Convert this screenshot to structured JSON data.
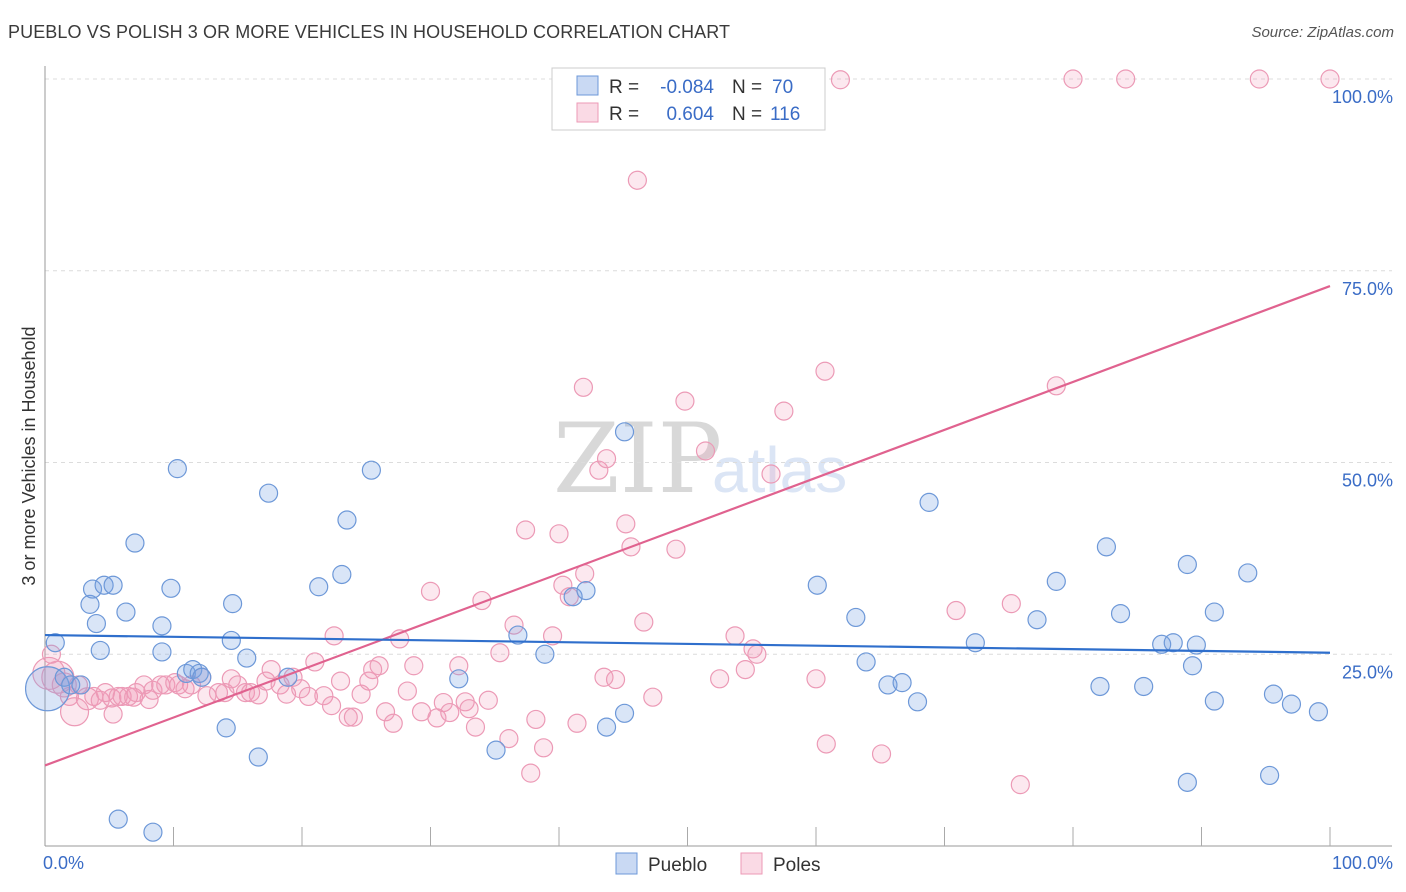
{
  "title": "PUEBLO VS POLISH 3 OR MORE VEHICLES IN HOUSEHOLD CORRELATION CHART",
  "source": "Source: ZipAtlas.com",
  "watermark": {
    "zip": "ZIP",
    "atlas": "atlas"
  },
  "chart_data": {
    "type": "scatter",
    "title": "PUEBLO VS POLISH 3 OR MORE VEHICLES IN HOUSEHOLD CORRELATION CHART",
    "xlabel": "",
    "ylabel": "3 or more Vehicles in Household",
    "xlim": [
      0,
      100
    ],
    "ylim": [
      0,
      100
    ],
    "x_tick_labels": [
      "0.0%",
      "100.0%"
    ],
    "y_tick_labels": [
      "25.0%",
      "50.0%",
      "75.0%",
      "100.0%"
    ],
    "y_ticks": [
      25,
      50,
      75,
      100
    ],
    "colors": {
      "pueblo": "#6d98d8",
      "poles": "#ec9ab6",
      "pueblo_line": "#2f6fcc",
      "poles_line": "#e0628f"
    },
    "legend": [
      {
        "name": "Pueblo",
        "r_label": "R =",
        "r": "-0.084",
        "n_label": "N =",
        "n": "70"
      },
      {
        "name": "Poles",
        "r_label": "R =",
        "r": "0.604",
        "n_label": "N =",
        "n": "116"
      }
    ],
    "series": [
      {
        "name": "Pueblo",
        "trend": {
          "x": [
            0,
            100
          ],
          "y": [
            27.5,
            25.2
          ]
        },
        "points": [
          [
            0.2,
            20.5,
            22
          ],
          [
            0.8,
            26.5,
            9
          ],
          [
            1.5,
            22,
            9
          ],
          [
            2,
            21,
            9
          ],
          [
            2.8,
            21,
            9
          ],
          [
            3.5,
            31.5,
            9
          ],
          [
            3.7,
            33.5,
            9
          ],
          [
            4,
            29,
            9
          ],
          [
            4.3,
            25.5,
            9
          ],
          [
            4.6,
            34,
            9
          ],
          [
            5.3,
            34,
            9
          ],
          [
            5.7,
            3.5,
            9
          ],
          [
            6.3,
            30.5,
            9
          ],
          [
            7,
            39.5,
            9
          ],
          [
            8.4,
            1.8,
            9
          ],
          [
            9.1,
            25.3,
            9
          ],
          [
            9.1,
            28.7,
            9
          ],
          [
            9.8,
            33.6,
            9
          ],
          [
            10.3,
            49.2,
            9
          ],
          [
            11,
            22.5,
            9
          ],
          [
            11.5,
            23,
            9
          ],
          [
            12,
            22.5,
            9
          ],
          [
            12.2,
            22,
            9
          ],
          [
            14.1,
            15.4,
            9
          ],
          [
            14.5,
            26.8,
            9
          ],
          [
            14.6,
            31.6,
            9
          ],
          [
            15.7,
            24.5,
            9
          ],
          [
            16.6,
            11.6,
            9
          ],
          [
            17.4,
            46,
            9
          ],
          [
            18.9,
            22,
            9
          ],
          [
            21.3,
            33.8,
            9
          ],
          [
            23.1,
            35.4,
            9
          ],
          [
            23.5,
            42.5,
            9
          ],
          [
            25.4,
            49,
            9
          ],
          [
            32.2,
            21.8,
            9
          ],
          [
            35.1,
            12.5,
            9
          ],
          [
            36.8,
            27.5,
            9
          ],
          [
            38.9,
            25,
            9
          ],
          [
            41.1,
            32.5,
            9
          ],
          [
            42.1,
            33.3,
            9
          ],
          [
            43.7,
            15.5,
            9
          ],
          [
            45.1,
            54,
            9
          ],
          [
            45.1,
            17.3,
            9
          ],
          [
            60.1,
            34,
            9
          ],
          [
            63.1,
            29.8,
            9
          ],
          [
            63.9,
            24,
            9
          ],
          [
            65.6,
            21,
            9
          ],
          [
            66.7,
            21.3,
            9
          ],
          [
            67.9,
            18.8,
            9
          ],
          [
            68.8,
            44.8,
            9
          ],
          [
            72.4,
            26.5,
            9
          ],
          [
            77.2,
            29.5,
            9
          ],
          [
            78.7,
            34.5,
            9
          ],
          [
            82.1,
            20.8,
            9
          ],
          [
            82.6,
            39,
            9
          ],
          [
            83.7,
            30.3,
            9
          ],
          [
            85.5,
            20.8,
            9
          ],
          [
            86.9,
            26.3,
            9
          ],
          [
            87.8,
            26.5,
            9
          ],
          [
            88.9,
            8.3,
            9
          ],
          [
            88.9,
            36.7,
            9
          ],
          [
            89.3,
            23.5,
            9
          ],
          [
            89.6,
            26.2,
            9
          ],
          [
            91,
            30.5,
            9
          ],
          [
            91,
            18.9,
            9
          ],
          [
            93.6,
            35.6,
            9
          ],
          [
            95.3,
            9.2,
            9
          ],
          [
            95.6,
            19.8,
            9
          ],
          [
            97,
            18.5,
            9
          ],
          [
            99.1,
            17.5,
            9
          ]
        ]
      },
      {
        "name": "Poles",
        "trend": {
          "x": [
            0,
            100
          ],
          "y": [
            10.5,
            73
          ]
        },
        "points": [
          [
            0.3,
            22.5,
            16
          ],
          [
            0.5,
            25,
            9
          ],
          [
            1,
            22,
            16
          ],
          [
            1.5,
            21,
            12
          ],
          [
            1.9,
            19.5,
            9
          ],
          [
            2.3,
            17.5,
            14
          ],
          [
            2.6,
            21,
            9
          ],
          [
            3.3,
            19.2,
            11
          ],
          [
            3.8,
            19.5,
            9
          ],
          [
            4.3,
            19,
            9
          ],
          [
            4.7,
            20,
            9
          ],
          [
            5.2,
            19.3,
            9
          ],
          [
            5.3,
            17.2,
            9
          ],
          [
            5.7,
            19.5,
            9
          ],
          [
            6,
            19.5,
            9
          ],
          [
            6.5,
            19.5,
            9
          ],
          [
            6.9,
            19.4,
            9
          ],
          [
            7.1,
            20,
            9
          ],
          [
            7.7,
            21,
            9
          ],
          [
            8.1,
            19.1,
            9
          ],
          [
            8.4,
            20.3,
            9
          ],
          [
            9,
            21,
            9
          ],
          [
            9.4,
            21,
            9
          ],
          [
            10.1,
            21.3,
            9
          ],
          [
            10.4,
            21,
            9
          ],
          [
            10.9,
            20.5,
            9
          ],
          [
            11.4,
            21,
            9
          ],
          [
            12.2,
            22,
            9
          ],
          [
            12.6,
            19.6,
            9
          ],
          [
            13.5,
            20,
            9
          ],
          [
            14,
            20,
            9
          ],
          [
            14.5,
            21.8,
            9
          ],
          [
            15,
            21,
            9
          ],
          [
            15.6,
            20,
            9
          ],
          [
            16,
            20,
            9
          ],
          [
            16.6,
            19.7,
            9
          ],
          [
            17.2,
            21.5,
            9
          ],
          [
            17.6,
            23,
            9
          ],
          [
            18.3,
            21,
            9
          ],
          [
            18.8,
            19.8,
            9
          ],
          [
            19.3,
            22,
            9
          ],
          [
            19.9,
            20.5,
            9
          ],
          [
            20.5,
            19.5,
            9
          ],
          [
            21,
            24,
            9
          ],
          [
            21.7,
            19.6,
            9
          ],
          [
            22.3,
            18.3,
            9
          ],
          [
            22.5,
            27.4,
            9
          ],
          [
            23,
            21.5,
            9
          ],
          [
            23.6,
            16.8,
            9
          ],
          [
            24,
            16.8,
            9
          ],
          [
            24.6,
            19.8,
            9
          ],
          [
            25.2,
            21.5,
            9
          ],
          [
            25.5,
            23,
            9
          ],
          [
            26,
            23.5,
            9
          ],
          [
            26.5,
            17.5,
            9
          ],
          [
            27.1,
            16,
            9
          ],
          [
            27.6,
            27,
            9
          ],
          [
            28.2,
            20.2,
            9
          ],
          [
            28.7,
            23.5,
            9
          ],
          [
            29.3,
            17.5,
            9
          ],
          [
            30,
            33.2,
            9
          ],
          [
            30.5,
            16.7,
            9
          ],
          [
            31,
            18.7,
            9
          ],
          [
            31.5,
            17.4,
            9
          ],
          [
            32.2,
            23.5,
            9
          ],
          [
            32.7,
            18.8,
            9
          ],
          [
            33,
            17.9,
            9
          ],
          [
            33.5,
            15.5,
            9
          ],
          [
            34,
            32,
            9
          ],
          [
            34.5,
            19,
            9
          ],
          [
            35.4,
            25.2,
            9
          ],
          [
            36.1,
            14,
            9
          ],
          [
            36.5,
            28.8,
            9
          ],
          [
            37.4,
            41.2,
            9
          ],
          [
            37.8,
            9.5,
            9
          ],
          [
            38.2,
            16.5,
            9
          ],
          [
            38.8,
            12.8,
            9
          ],
          [
            39.5,
            27.4,
            9
          ],
          [
            40,
            40.7,
            9
          ],
          [
            40.3,
            34,
            9
          ],
          [
            40.8,
            32.5,
            9
          ],
          [
            41.4,
            16,
            9
          ],
          [
            41.9,
            59.8,
            9
          ],
          [
            42,
            35.5,
            9
          ],
          [
            43.1,
            49,
            9
          ],
          [
            43.7,
            50.5,
            9
          ],
          [
            44.4,
            21.7,
            9
          ],
          [
            45.2,
            42,
            9
          ],
          [
            45.6,
            39,
            9
          ],
          [
            46.1,
            86.8,
            9
          ],
          [
            46.6,
            29.2,
            9
          ],
          [
            47.3,
            19.4,
            9
          ],
          [
            49.1,
            38.7,
            9
          ],
          [
            49.8,
            58,
            9
          ],
          [
            51.4,
            51.5,
            9
          ],
          [
            53.7,
            27.4,
            9
          ],
          [
            54.5,
            23,
            9
          ],
          [
            55.1,
            25.7,
            9
          ],
          [
            55.4,
            25,
            9
          ],
          [
            56.5,
            48.5,
            9
          ],
          [
            57.5,
            56.7,
            9
          ],
          [
            60.7,
            61.9,
            9
          ],
          [
            61.9,
            99.9,
            9
          ],
          [
            60.8,
            13.3,
            9
          ],
          [
            60,
            21.8,
            9
          ],
          [
            65.1,
            12,
            9
          ],
          [
            70.9,
            30.7,
            9
          ],
          [
            75.2,
            31.6,
            9
          ],
          [
            75.9,
            8,
            9
          ],
          [
            78.7,
            60,
            9
          ],
          [
            80,
            100,
            9
          ],
          [
            84.1,
            100,
            9
          ],
          [
            94.5,
            100,
            9
          ],
          [
            100,
            100,
            9
          ],
          [
            43.5,
            22,
            9
          ],
          [
            52.5,
            21.8,
            9
          ]
        ]
      }
    ]
  }
}
